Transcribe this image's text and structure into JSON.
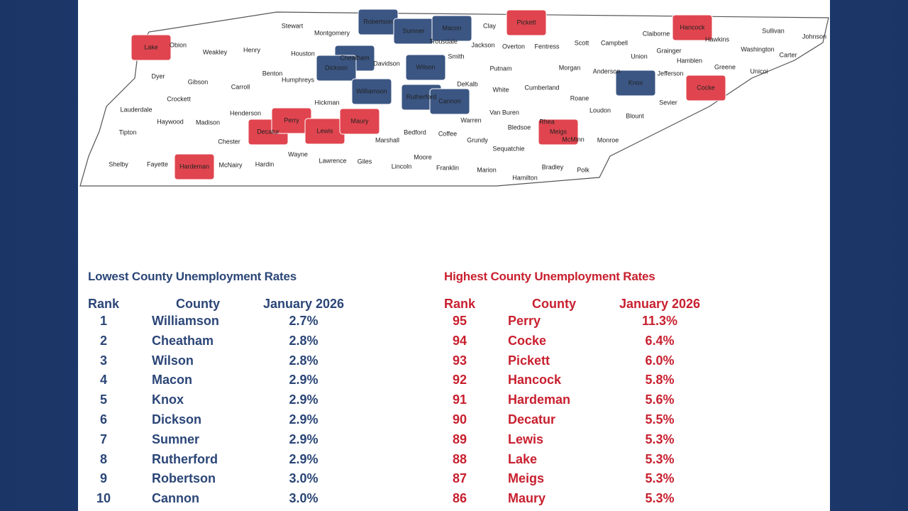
{
  "map": {
    "counties": [
      "Lake",
      "Obion",
      "Weakley",
      "Henry",
      "Stewart",
      "Montgomery",
      "Robertson",
      "Sumner",
      "Macon",
      "Clay",
      "Pickett",
      "Hancock",
      "Claiborne",
      "Sullivan",
      "Johnson",
      "Hawkins",
      "Washington",
      "Carter",
      "Greene",
      "Unicoi",
      "Grainger",
      "Hamblen",
      "Union",
      "Campbell",
      "Scott",
      "Fentress",
      "Overton",
      "Jackson",
      "Trousdale",
      "Smith",
      "Cheatham",
      "Davidson",
      "Wilson",
      "Dickson",
      "Houston",
      "Humphreys",
      "Benton",
      "Carroll",
      "Gibson",
      "Dyer",
      "Lauderdale",
      "Crockett",
      "Haywood",
      "Madison",
      "Henderson",
      "Tipton",
      "Chester",
      "Decatur",
      "Perry",
      "Hickman",
      "Williamson",
      "Rutherford",
      "Cannon",
      "Putnam",
      "DeKalb",
      "White",
      "Cumberland",
      "Morgan",
      "Anderson",
      "Knox",
      "Jefferson",
      "Cocke",
      "Sevier",
      "Blount",
      "Roane",
      "Loudon",
      "Warren",
      "Van Buren",
      "Bledsoe",
      "Rhea",
      "Meigs",
      "McMinn",
      "Monroe",
      "Lewis",
      "Maury",
      "Marshall",
      "Bedford",
      "Coffee",
      "Grundy",
      "Sequatchie",
      "Shelby",
      "Fayette",
      "Hardeman",
      "McNairy",
      "Hardin",
      "Wayne",
      "Lawrence",
      "Giles",
      "Lincoln",
      "Moore",
      "Franklin",
      "Marion",
      "Hamilton",
      "Bradley",
      "Polk"
    ]
  },
  "lowest": {
    "title": "Lowest County Unemployment Rates",
    "headers": [
      "Rank",
      "County",
      "January 2026"
    ],
    "rows": [
      [
        1,
        "Williamson",
        "2.7%"
      ],
      [
        2,
        "Cheatham",
        "2.8%"
      ],
      [
        3,
        "Wilson",
        "2.8%"
      ],
      [
        4,
        "Macon",
        "2.9%"
      ],
      [
        5,
        "Knox",
        "2.9%"
      ],
      [
        6,
        "Dickson",
        "2.9%"
      ],
      [
        7,
        "Sumner",
        "2.9%"
      ],
      [
        8,
        "Rutherford",
        "2.9%"
      ],
      [
        9,
        "Robertson",
        "3.0%"
      ],
      [
        10,
        "Cannon",
        "3.0%"
      ]
    ]
  },
  "highest": {
    "title": "Highest County Unemployment Rates",
    "headers": [
      "Rank",
      "County",
      "January 2026"
    ],
    "rows": [
      [
        95,
        "Perry",
        "11.3%"
      ],
      [
        94,
        "Cocke",
        "6.4%"
      ],
      [
        93,
        "Pickett",
        "6.0%"
      ],
      [
        92,
        "Hancock",
        "5.8%"
      ],
      [
        91,
        "Hardeman",
        "5.6%"
      ],
      [
        90,
        "Decatur",
        "5.5%"
      ],
      [
        89,
        "Lewis",
        "5.3%"
      ],
      [
        88,
        "Lake",
        "5.3%"
      ],
      [
        87,
        "Meigs",
        "5.3%"
      ],
      [
        86,
        "Maury",
        "5.3%"
      ]
    ]
  }
}
